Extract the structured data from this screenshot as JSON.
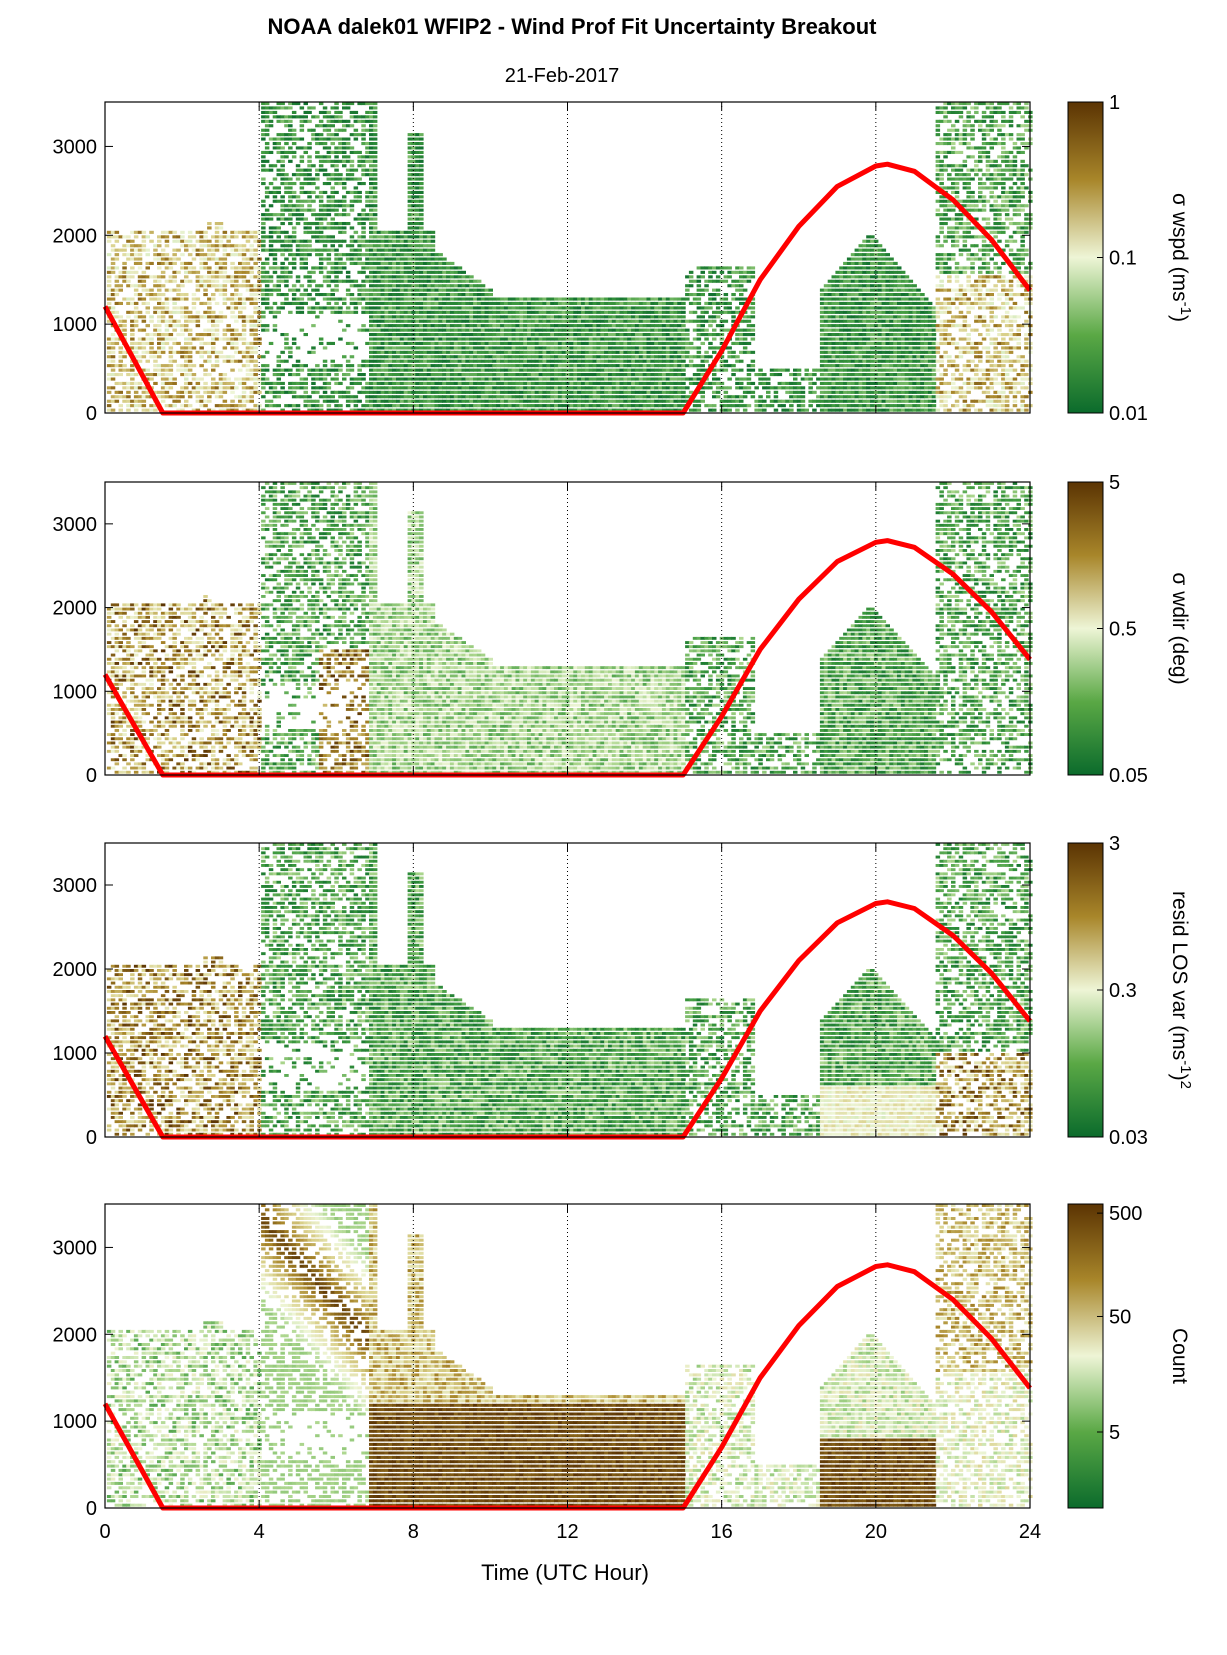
{
  "title": "NOAA dalek01 WFIP2 - Wind Prof Fit Uncertainty Breakout",
  "subtitle": "21-Feb-2017",
  "xlabel": "Time (UTC Hour)",
  "x_ticks": [
    "0",
    "4",
    "8",
    "12",
    "16",
    "20",
    "24"
  ],
  "y_ticks": [
    "0",
    "1000",
    "2000",
    "3000"
  ],
  "colors": {
    "low": "#0b6b2c",
    "mid": "#eef5d6",
    "high": "#5b3403",
    "sun_curve": "#ff0000"
  },
  "chart_data": [
    {
      "type": "heatmap",
      "panel": 1,
      "xlim": [
        0,
        24
      ],
      "ylim": [
        0,
        3500
      ],
      "x_ticks": [
        0,
        4,
        8,
        12,
        16,
        20,
        24
      ],
      "y_ticks": [
        0,
        1000,
        2000,
        3000
      ],
      "grid_x": [
        4,
        8,
        12,
        16,
        20
      ],
      "colorbar": {
        "label_main": "σ wspd (ms",
        "label_sup": "-1",
        "label_end": ")",
        "scale": "log",
        "range": [
          0.01,
          1
        ],
        "ticks": [
          "1",
          "0.1",
          "0.01"
        ]
      },
      "overlay_line": {
        "color": "#ff0000",
        "x": [
          0,
          1.5,
          15,
          16,
          17,
          18,
          19,
          20,
          20.3,
          21,
          22,
          23,
          24
        ],
        "y": [
          1200,
          0,
          0,
          700,
          1500,
          2100,
          2550,
          2780,
          2800,
          2720,
          2400,
          1950,
          1380
        ]
      }
    },
    {
      "type": "heatmap",
      "panel": 2,
      "xlim": [
        0,
        24
      ],
      "ylim": [
        0,
        3500
      ],
      "x_ticks": [
        0,
        4,
        8,
        12,
        16,
        20,
        24
      ],
      "y_ticks": [
        0,
        1000,
        2000,
        3000
      ],
      "grid_x": [
        4,
        8,
        12,
        16,
        20
      ],
      "colorbar": {
        "label_main": "σ wdir (deg)",
        "label_sup": "",
        "label_end": "",
        "scale": "log",
        "range": [
          0.05,
          5
        ],
        "ticks": [
          "5",
          "0.5",
          "0.05"
        ]
      },
      "overlay_line": {
        "color": "#ff0000",
        "x": [
          0,
          1.5,
          15,
          16,
          17,
          18,
          19,
          20,
          20.3,
          21,
          22,
          23,
          24
        ],
        "y": [
          1200,
          0,
          0,
          700,
          1500,
          2100,
          2550,
          2780,
          2800,
          2720,
          2400,
          1950,
          1380
        ]
      }
    },
    {
      "type": "heatmap",
      "panel": 3,
      "xlim": [
        0,
        24
      ],
      "ylim": [
        0,
        3500
      ],
      "x_ticks": [
        0,
        4,
        8,
        12,
        16,
        20,
        24
      ],
      "y_ticks": [
        0,
        1000,
        2000,
        3000
      ],
      "grid_x": [
        4,
        8,
        12,
        16,
        20
      ],
      "colorbar": {
        "label_main": "resid LOS var (ms",
        "label_sup": "-1",
        "label_end": ")",
        "label_sup2": "2",
        "scale": "log",
        "range": [
          0.03,
          3
        ],
        "ticks": [
          "3",
          "0.3",
          "0.03"
        ]
      },
      "overlay_line": {
        "color": "#ff0000",
        "x": [
          0,
          1.5,
          15,
          16,
          17,
          18,
          19,
          20,
          20.3,
          21,
          22,
          23,
          24
        ],
        "y": [
          1200,
          0,
          0,
          700,
          1500,
          2100,
          2550,
          2780,
          2800,
          2720,
          2400,
          1950,
          1380
        ]
      }
    },
    {
      "type": "heatmap",
      "panel": 4,
      "xlim": [
        0,
        24
      ],
      "ylim": [
        0,
        3500
      ],
      "x_ticks": [
        0,
        4,
        8,
        12,
        16,
        20,
        24
      ],
      "y_ticks": [
        0,
        1000,
        2000,
        3000
      ],
      "grid_x": [
        4,
        8,
        12,
        16,
        20
      ],
      "colorbar": {
        "label_main": "Count",
        "label_sup": "",
        "label_end": "",
        "scale": "log",
        "range": [
          1,
          500
        ],
        "ticks": [
          "500",
          "50",
          "5"
        ]
      },
      "overlay_line": {
        "color": "#ff0000",
        "x": [
          0,
          1.5,
          15,
          16,
          17,
          18,
          19,
          20,
          20.3,
          21,
          22,
          23,
          24
        ],
        "y": [
          1200,
          0,
          0,
          700,
          1500,
          2100,
          2550,
          2780,
          2800,
          2720,
          2400,
          1950,
          1380
        ]
      }
    }
  ]
}
